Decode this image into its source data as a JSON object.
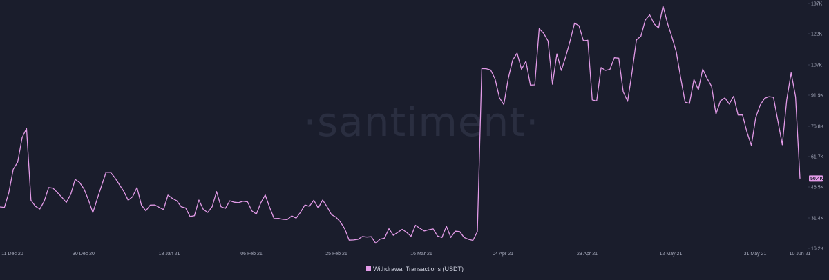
{
  "watermark": "·santiment·",
  "colors": {
    "background": "#1a1d2c",
    "series": "#e39be8",
    "axis": "#3a3e52",
    "tick_text": "#a9adbf"
  },
  "chart_data": {
    "type": "line",
    "title": "",
    "xlabel": "",
    "ylabel": "",
    "x_ticks": [
      "11 Dec 20",
      "30 Dec 20",
      "18 Jan 21",
      "06 Feb 21",
      "25 Feb 21",
      "16 Mar 21",
      "04 Apr 21",
      "23 Apr 21",
      "12 May 21",
      "31 May 21",
      "10 Jun 21"
    ],
    "y_ticks": [
      "16.2K",
      "31.4K",
      "46.5K",
      "61.7K",
      "76.8K",
      "91.9K",
      "107K",
      "122K",
      "137K"
    ],
    "ylim": [
      16200,
      137000
    ],
    "grid": false,
    "legend_position": "bottom",
    "last_value_label": "50.4K",
    "series": [
      {
        "name": "Withdrawal Transactions (USDT)",
        "color": "#e39be8",
        "values": [
          36500,
          36300,
          43500,
          55000,
          58500,
          70500,
          75000,
          39800,
          36800,
          35500,
          39300,
          46000,
          45700,
          43500,
          41200,
          38700,
          42700,
          50000,
          48500,
          45300,
          40000,
          33700,
          40500,
          47000,
          53500,
          53500,
          50800,
          47500,
          44200,
          39800,
          41500,
          46000,
          37400,
          34600,
          37400,
          37500,
          36300,
          35200,
          42300,
          40700,
          39500,
          36600,
          36000,
          31800,
          32200,
          39900,
          35300,
          33800,
          36600,
          44000,
          36600,
          35800,
          39500,
          38800,
          38600,
          39300,
          39000,
          34500,
          33000,
          38500,
          42400,
          36300,
          30800,
          30900,
          30400,
          30300,
          32100,
          31000,
          33900,
          37500,
          36800,
          39800,
          36000,
          39900,
          36600,
          32700,
          31500,
          29200,
          25700,
          20200,
          20300,
          20600,
          22000,
          21700,
          21900,
          18700,
          20700,
          21200,
          25800,
          22600,
          24000,
          25500,
          24000,
          22100,
          27500,
          26000,
          24700,
          25300,
          25700,
          22200,
          21500,
          27000,
          21500,
          24600,
          24400,
          21500,
          20600,
          20100,
          24400,
          104400,
          104300,
          103700,
          99300,
          90000,
          86700,
          99500,
          108500,
          112000,
          104000,
          108000,
          96300,
          96400,
          124000,
          121700,
          117900,
          96700,
          111600,
          103500,
          110200,
          118000,
          126700,
          125400,
          118000,
          118300,
          89000,
          88500,
          104900,
          103500,
          104000,
          109700,
          109500,
          93000,
          88300,
          102600,
          118500,
          120300,
          128200,
          130700,
          126300,
          124300,
          135100,
          126700,
          120000,
          112600,
          99800,
          87900,
          87300,
          99000,
          94000,
          104100,
          99500,
          95700,
          82000,
          88500,
          90000,
          87000,
          90800,
          81600,
          81600,
          73200,
          66700,
          80400,
          86500,
          89800,
          90600,
          90300,
          78700,
          67000,
          89000,
          102300,
          90500,
          50400
        ]
      }
    ]
  }
}
